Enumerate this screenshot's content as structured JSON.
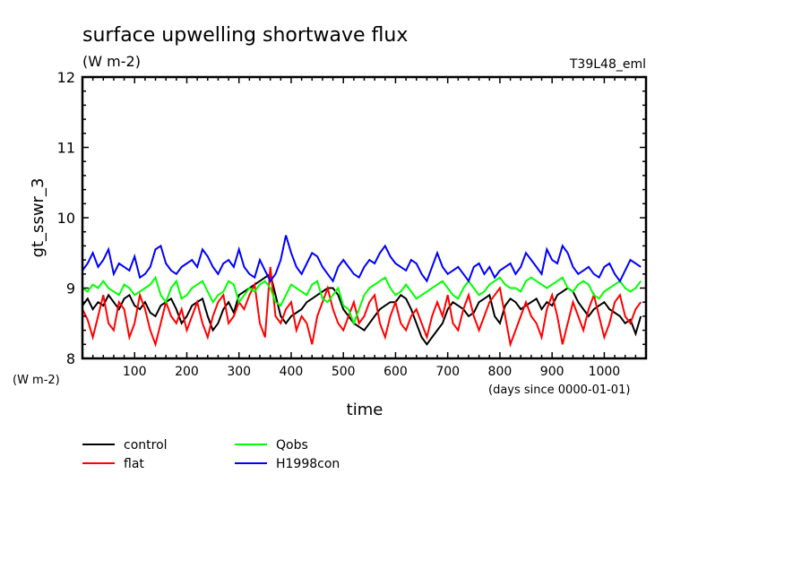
{
  "chart_data": {
    "type": "line",
    "title": "surface upwelling shortwave flux",
    "subtitle": "(W m-2)",
    "run_label": "T39L48_eml",
    "ylabel": "gt_sswr_3",
    "yunit": "(W m-2)",
    "xlabel": "time",
    "xunit": "(days since 0000-01-01)",
    "xlim": [
      0,
      1080
    ],
    "ylim": [
      8,
      12
    ],
    "xticks": [
      100,
      200,
      300,
      400,
      500,
      600,
      700,
      800,
      900,
      1000
    ],
    "yticks": [
      8,
      9,
      10,
      11,
      12
    ],
    "legend_position": "bottom-left",
    "x_step": 10,
    "series": [
      {
        "name": "control",
        "color": "#000000",
        "values": [
          8.75,
          8.85,
          8.7,
          8.8,
          8.75,
          8.9,
          8.8,
          8.7,
          8.85,
          8.9,
          8.75,
          8.7,
          8.8,
          8.65,
          8.6,
          8.75,
          8.8,
          8.85,
          8.7,
          8.5,
          8.6,
          8.75,
          8.8,
          8.85,
          8.6,
          8.4,
          8.5,
          8.7,
          8.8,
          8.65,
          8.9,
          8.95,
          9.0,
          9.05,
          9.1,
          9.15,
          9.2,
          8.9,
          8.6,
          8.5,
          8.6,
          8.65,
          8.7,
          8.8,
          8.85,
          8.9,
          8.95,
          9.0,
          9.0,
          8.9,
          8.7,
          8.6,
          8.5,
          8.45,
          8.4,
          8.5,
          8.6,
          8.7,
          8.75,
          8.8,
          8.8,
          8.9,
          8.85,
          8.7,
          8.5,
          8.3,
          8.2,
          8.3,
          8.4,
          8.5,
          8.7,
          8.8,
          8.75,
          8.7,
          8.6,
          8.65,
          8.8,
          8.85,
          8.9,
          8.6,
          8.5,
          8.75,
          8.85,
          8.8,
          8.7,
          8.75,
          8.8,
          8.85,
          8.7,
          8.8,
          8.75,
          8.9,
          8.95,
          9.0,
          8.95,
          8.8,
          8.7,
          8.6,
          8.7,
          8.75,
          8.8,
          8.7,
          8.65,
          8.6,
          8.5,
          8.55,
          8.35,
          8.6
        ]
      },
      {
        "name": "flat",
        "color": "#ff0000",
        "values": [
          8.7,
          8.55,
          8.3,
          8.6,
          8.9,
          8.5,
          8.4,
          8.8,
          8.7,
          8.3,
          8.5,
          8.9,
          8.7,
          8.4,
          8.2,
          8.5,
          8.8,
          8.6,
          8.5,
          8.7,
          8.4,
          8.6,
          8.8,
          8.5,
          8.3,
          8.6,
          8.8,
          8.9,
          8.5,
          8.6,
          8.8,
          8.7,
          8.9,
          9.05,
          8.5,
          8.3,
          9.3,
          8.6,
          8.5,
          8.7,
          8.8,
          8.4,
          8.6,
          8.5,
          8.2,
          8.6,
          8.8,
          9.0,
          8.7,
          8.5,
          8.4,
          8.6,
          8.8,
          8.5,
          8.6,
          8.8,
          8.9,
          8.5,
          8.3,
          8.6,
          8.8,
          8.5,
          8.4,
          8.6,
          8.7,
          8.5,
          8.3,
          8.6,
          8.8,
          8.6,
          8.9,
          8.5,
          8.4,
          8.7,
          8.9,
          8.6,
          8.4,
          8.6,
          8.8,
          8.9,
          9.0,
          8.6,
          8.2,
          8.4,
          8.6,
          8.8,
          8.6,
          8.5,
          8.3,
          8.7,
          8.9,
          8.6,
          8.2,
          8.5,
          8.8,
          8.6,
          8.4,
          8.7,
          8.9,
          8.6,
          8.3,
          8.5,
          8.8,
          8.9,
          8.6,
          8.5,
          8.7,
          8.8
        ]
      },
      {
        "name": "Qobs",
        "color": "#00ff00",
        "values": [
          9.0,
          8.95,
          9.05,
          9.0,
          9.1,
          9.0,
          8.95,
          8.9,
          9.05,
          9.0,
          8.9,
          8.95,
          9.0,
          9.05,
          9.15,
          8.9,
          8.8,
          9.0,
          9.1,
          8.85,
          8.9,
          9.0,
          9.05,
          9.1,
          8.95,
          8.8,
          8.9,
          8.95,
          9.1,
          9.05,
          8.8,
          8.9,
          9.0,
          8.95,
          9.05,
          9.1,
          9.0,
          8.8,
          8.75,
          8.9,
          9.05,
          9.0,
          8.95,
          8.9,
          9.05,
          9.1,
          8.85,
          8.8,
          8.9,
          9.0,
          8.75,
          8.7,
          8.5,
          8.7,
          8.9,
          9.0,
          9.05,
          9.1,
          9.15,
          9.0,
          8.9,
          8.95,
          9.05,
          8.95,
          8.85,
          8.9,
          8.95,
          9.0,
          9.05,
          9.1,
          9.0,
          8.9,
          8.85,
          9.0,
          9.1,
          9.0,
          8.9,
          8.95,
          9.05,
          9.1,
          9.15,
          9.05,
          9.0,
          9.0,
          8.95,
          9.1,
          9.15,
          9.1,
          9.05,
          9.0,
          9.05,
          9.1,
          9.15,
          9.0,
          8.95,
          9.05,
          9.1,
          9.05,
          8.9,
          8.85,
          8.95,
          9.0,
          9.05,
          9.1,
          9.0,
          8.95,
          9.0,
          9.1
        ]
      },
      {
        "name": "H1998con",
        "color": "#0000ff",
        "values": [
          9.25,
          9.35,
          9.5,
          9.3,
          9.4,
          9.55,
          9.2,
          9.35,
          9.3,
          9.25,
          9.45,
          9.15,
          9.2,
          9.3,
          9.55,
          9.6,
          9.35,
          9.25,
          9.2,
          9.3,
          9.35,
          9.4,
          9.3,
          9.55,
          9.45,
          9.3,
          9.2,
          9.35,
          9.4,
          9.3,
          9.55,
          9.3,
          9.2,
          9.15,
          9.4,
          9.25,
          9.1,
          9.2,
          9.4,
          9.75,
          9.5,
          9.3,
          9.2,
          9.35,
          9.5,
          9.45,
          9.3,
          9.2,
          9.1,
          9.3,
          9.4,
          9.3,
          9.2,
          9.15,
          9.3,
          9.4,
          9.35,
          9.5,
          9.6,
          9.45,
          9.35,
          9.3,
          9.25,
          9.4,
          9.35,
          9.2,
          9.1,
          9.3,
          9.5,
          9.3,
          9.2,
          9.25,
          9.3,
          9.2,
          9.1,
          9.3,
          9.35,
          9.2,
          9.3,
          9.15,
          9.25,
          9.3,
          9.35,
          9.2,
          9.3,
          9.5,
          9.4,
          9.3,
          9.2,
          9.55,
          9.4,
          9.35,
          9.6,
          9.5,
          9.3,
          9.2,
          9.25,
          9.3,
          9.2,
          9.15,
          9.3,
          9.35,
          9.2,
          9.1,
          9.25,
          9.4,
          9.35,
          9.3
        ]
      }
    ]
  }
}
